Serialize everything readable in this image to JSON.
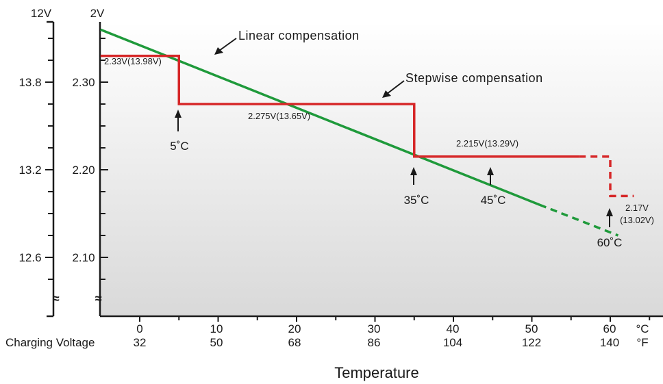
{
  "chart_data": {
    "type": "line",
    "title": "",
    "xlabel": "Temperature",
    "ylabel_left": "Charging Voltage",
    "y_units": {
      "battery_12v": "12V",
      "cell_2v": "2V"
    },
    "x_unit_c": "°C",
    "x_unit_f": "°F",
    "x_ticks_c": [
      "0",
      "10",
      "20",
      "30",
      "40",
      "50",
      "60"
    ],
    "x_ticks_f": [
      "32",
      "50",
      "68",
      "86",
      "104",
      "122",
      "140"
    ],
    "y_ticks_12v": [
      "13.8",
      "13.2",
      "12.6"
    ],
    "y_ticks_2v": [
      "2.30",
      "2.20",
      "2.10"
    ],
    "break_symbol": "≈",
    "xlim": [
      -5,
      66
    ],
    "ylim": [
      2.04,
      2.37
    ],
    "series": [
      {
        "name": "Linear compensation",
        "color": "#1f9a3b",
        "points": [
          [
            -5,
            2.36
          ],
          [
            51,
            2.16
          ]
        ],
        "dashed_points": [
          [
            51,
            2.16
          ],
          [
            61,
            2.125
          ]
        ]
      },
      {
        "name": "Stepwise compensation",
        "color": "#d62728",
        "points": [
          [
            -5,
            2.33
          ],
          [
            5,
            2.33
          ],
          [
            5,
            2.275
          ],
          [
            35,
            2.275
          ],
          [
            35,
            2.215
          ],
          [
            56,
            2.215
          ]
        ],
        "dashed_points": [
          [
            56,
            2.215
          ],
          [
            60,
            2.215
          ],
          [
            60,
            2.17
          ],
          [
            63,
            2.17
          ]
        ]
      }
    ],
    "labels": {
      "linear": "Linear compensation",
      "stepwise": "Stepwise compensation",
      "v1": "2.33V(13.98V)",
      "v2": "2.275V(13.65V)",
      "v3": "2.215V(13.29V)",
      "v4a": "2.17V",
      "v4b": "(13.02V)",
      "t5": "5˚C",
      "t35": "35˚C",
      "t45": "45˚C",
      "t60": "60˚C"
    }
  }
}
